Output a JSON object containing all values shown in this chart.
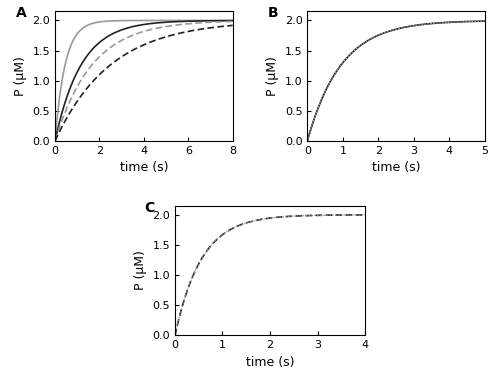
{
  "panel_A": {
    "label": "A",
    "xlim": [
      0,
      8
    ],
    "ylim": [
      0.0,
      2.15
    ],
    "yticks": [
      0.0,
      0.5,
      1.0,
      1.5,
      2.0
    ],
    "xticks": [
      0,
      2,
      4,
      6,
      8
    ],
    "xlabel": "time (s)",
    "ylabel": "P (μM)",
    "curves": [
      {
        "type": "solid",
        "color": "#999999",
        "rate": 2.2,
        "plateau": 2.0
      },
      {
        "type": "solid",
        "color": "#222222",
        "rate": 0.85,
        "plateau": 2.0
      },
      {
        "type": "dashed",
        "color": "#999999",
        "rate": 0.6,
        "plateau": 2.0
      },
      {
        "type": "dashed",
        "color": "#222222",
        "rate": 0.4,
        "plateau": 2.0
      }
    ]
  },
  "panel_B": {
    "label": "B",
    "xlim": [
      0,
      5
    ],
    "ylim": [
      0.0,
      2.15
    ],
    "yticks": [
      0.0,
      0.5,
      1.0,
      1.5,
      2.0
    ],
    "xticks": [
      0,
      1,
      2,
      3,
      4,
      5
    ],
    "xlabel": "time (s)",
    "ylabel": "P (μM)",
    "black_rate": 1.05,
    "gray_rate": 1.05,
    "plateau": 2.0
  },
  "panel_C": {
    "label": "C",
    "xlim": [
      0,
      4
    ],
    "ylim": [
      0.0,
      2.15
    ],
    "yticks": [
      0.0,
      0.5,
      1.0,
      1.5,
      2.0
    ],
    "xticks": [
      0,
      1,
      2,
      3,
      4
    ],
    "xlabel": "time (s)",
    "ylabel": "P (μM)",
    "dashed_rate": 1.8,
    "gray_rate": 1.8,
    "plateau": 2.0
  },
  "black": "#111111",
  "gray": "#999999",
  "bg": "#ffffff",
  "tick_labelsize": 8,
  "axis_labelsize": 9,
  "panel_labelsize": 10,
  "lw": 1.2
}
